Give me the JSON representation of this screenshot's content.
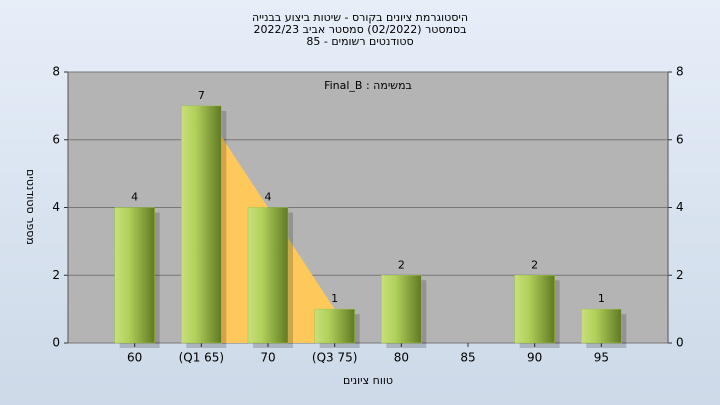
{
  "chart_data": {
    "type": "bar",
    "title": [
      "היסטוגרמת ציונים בקורס - שיטות ביצוע בבנייה",
      "בסמסטר  (02/2022)  סמסטר אביב 2022/23",
      "סטודנטים רשומים - 85"
    ],
    "annotation": "Final_B : במשימה",
    "x_label": "טווח ציונים",
    "y_label": "מספר סטודנטים",
    "categories": [
      "60",
      "(Q1 65)",
      "70",
      "(Q3 75)",
      "80",
      "85",
      "90",
      "95"
    ],
    "values": [
      4,
      7,
      4,
      1,
      2,
      0,
      2,
      1
    ],
    "value_labels": [
      "4",
      "7",
      "4",
      "1",
      "2",
      null,
      "2",
      "1"
    ],
    "color": "#9cc24a",
    "highlight": {
      "from": 1,
      "to": 3,
      "color": "#ffc85a"
    },
    "ylim": [
      0,
      8
    ],
    "yticks": [
      0,
      2,
      4,
      6,
      8
    ],
    "y2lim": [
      0,
      8
    ],
    "y2ticks": [
      0,
      2,
      4,
      6,
      8
    ],
    "grid": true
  }
}
